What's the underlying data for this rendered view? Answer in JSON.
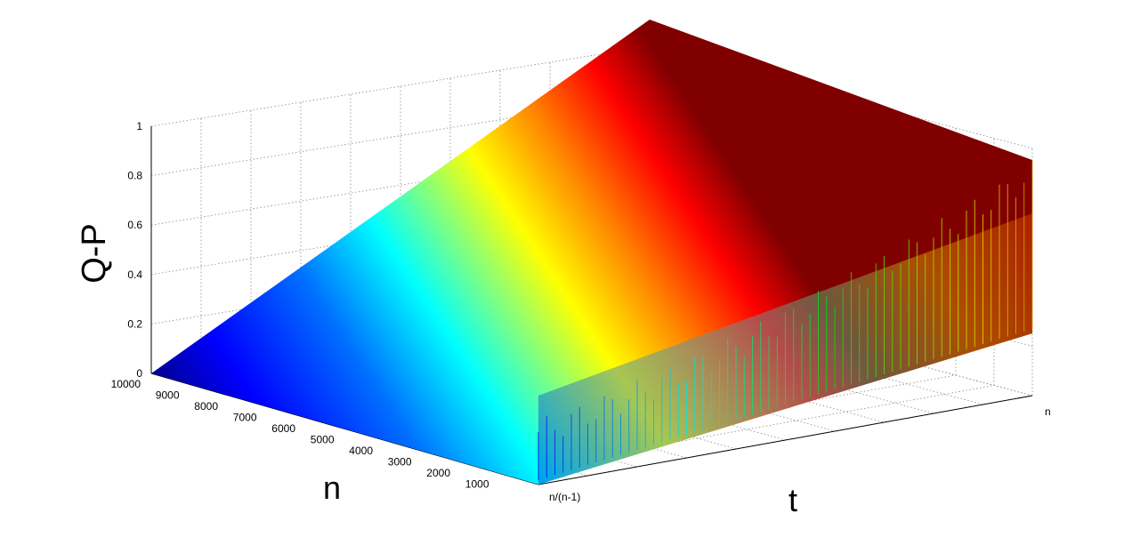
{
  "chart_data": {
    "type": "surface",
    "zlabel": "Q-P",
    "ylabel": "n",
    "xlabel": "t",
    "z_ticks": [
      "0",
      "0.2",
      "0.4",
      "0.6",
      "0.8",
      "1"
    ],
    "zlim": [
      0,
      1
    ],
    "y_ticks": [
      "1000",
      "2000",
      "3000",
      "4000",
      "5000",
      "6000",
      "7000",
      "8000",
      "9000",
      "10000"
    ],
    "ylim": [
      0,
      10000
    ],
    "x_tick_labels": [
      "n/(n-1)",
      "n"
    ],
    "grid": true,
    "colormap": "jet",
    "colormap_stops": [
      "#00008f",
      "#0000ff",
      "#0080ff",
      "#00ffff",
      "#80ff80",
      "#ffff00",
      "#ff8000",
      "#ff0000",
      "#800000"
    ],
    "surface_description_values": {
      "q_minus_p_low_t": 0,
      "q_minus_p_high_t": 1
    }
  }
}
